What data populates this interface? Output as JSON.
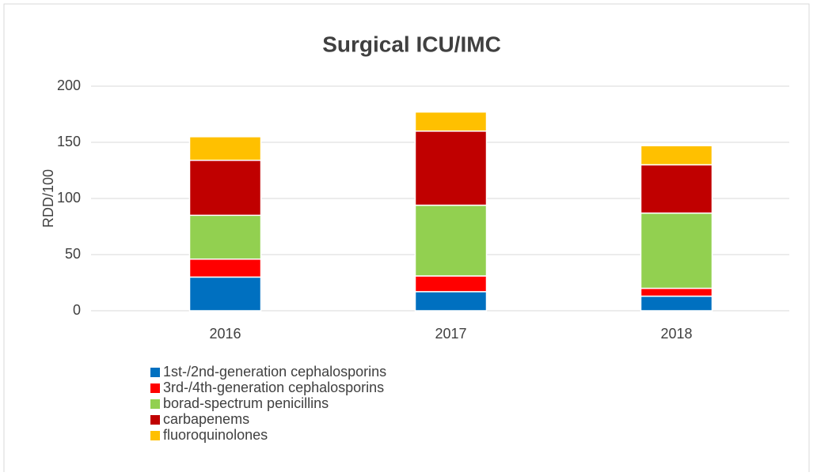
{
  "chart_data": {
    "type": "stacked_bar",
    "title": "Surgical ICU/IMC",
    "y_label": "RDD/100",
    "categories": [
      "2016",
      "2017",
      "2018"
    ],
    "series": [
      {
        "name": "1st-/2nd-generation cephalosporins",
        "color": "#0070c0",
        "values": [
          30,
          17,
          13
        ]
      },
      {
        "name": "3rd-/4th-generation cephalosporins",
        "color": "#ff0000",
        "values": [
          16,
          14,
          7
        ]
      },
      {
        "name": "borad-spectrum penicillins",
        "color": "#92d050",
        "values": [
          39,
          63,
          67
        ]
      },
      {
        "name": "carbapenems",
        "color": "#c00000",
        "values": [
          49,
          66,
          43
        ]
      },
      {
        "name": "fluoroquinolones",
        "color": "#ffc000",
        "values": [
          21,
          17,
          17
        ]
      }
    ],
    "ylim": [
      0,
      200
    ],
    "yticks": [
      0,
      50,
      100,
      150,
      200
    ],
    "grid": true
  }
}
